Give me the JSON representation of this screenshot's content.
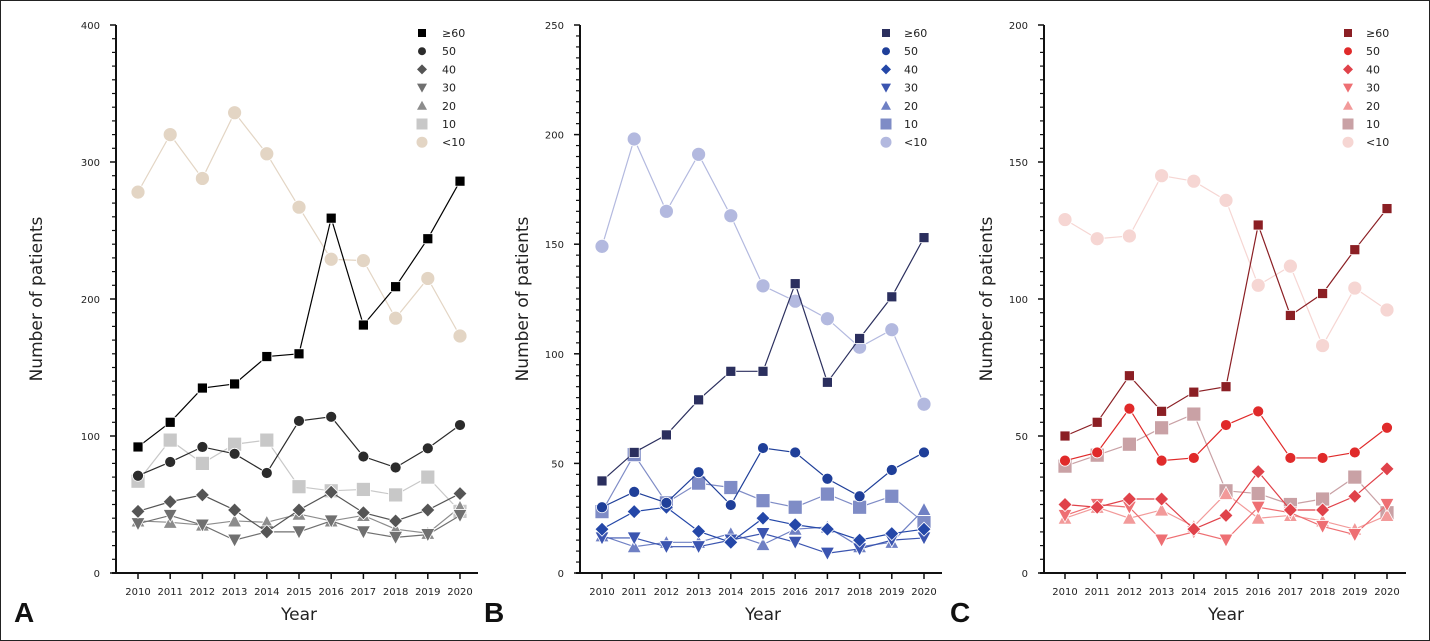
{
  "chart_data": [
    {
      "type": "line",
      "panel_label": "A",
      "title": "",
      "xlabel": "Year",
      "ylabel": "Number of patients",
      "x": [
        "2010",
        "2011",
        "2012",
        "2013",
        "2014",
        "2015",
        "2016",
        "2017",
        "2018",
        "2019",
        "2020"
      ],
      "ylim": [
        0,
        400
      ],
      "yticks": [
        0,
        100,
        200,
        300,
        400
      ],
      "grid": false,
      "legend_position": "top-right",
      "series": [
        {
          "name": "≥60",
          "marker": "square",
          "color": "#000000",
          "values": [
            92,
            110,
            135,
            138,
            158,
            160,
            259,
            181,
            209,
            244,
            286
          ]
        },
        {
          "name": "50",
          "marker": "circle",
          "color": "#2b2b2b",
          "values": [
            71,
            81,
            92,
            87,
            73,
            111,
            114,
            85,
            77,
            91,
            108
          ]
        },
        {
          "name": "40",
          "marker": "diamond",
          "color": "#555555",
          "values": [
            45,
            52,
            57,
            46,
            30,
            46,
            59,
            44,
            38,
            46,
            58
          ]
        },
        {
          "name": "30",
          "marker": "triangle-down",
          "color": "#707070",
          "values": [
            36,
            42,
            35,
            24,
            30,
            30,
            38,
            30,
            26,
            28,
            42
          ]
        },
        {
          "name": "20",
          "marker": "triangle-up",
          "color": "#8c8c8c",
          "values": [
            38,
            37,
            35,
            38,
            37,
            43,
            38,
            42,
            32,
            29,
            48
          ]
        },
        {
          "name": "10",
          "marker": "square-large",
          "color": "#c8c8c8",
          "values": [
            67,
            97,
            80,
            94,
            97,
            63,
            60,
            61,
            57,
            70,
            45
          ]
        },
        {
          "name": "<10",
          "marker": "circle-large",
          "color": "#e3d5c4",
          "values": [
            278,
            320,
            288,
            336,
            306,
            267,
            229,
            228,
            186,
            215,
            173
          ]
        }
      ]
    },
    {
      "type": "line",
      "panel_label": "B",
      "title": "",
      "xlabel": "Year",
      "ylabel": "Number of patients",
      "x": [
        "2010",
        "2011",
        "2012",
        "2013",
        "2014",
        "2015",
        "2016",
        "2017",
        "2018",
        "2019",
        "2020"
      ],
      "ylim": [
        0,
        250
      ],
      "yticks": [
        0,
        50,
        100,
        150,
        200,
        250
      ],
      "grid": false,
      "legend_position": "top-right",
      "series": [
        {
          "name": "≥60",
          "marker": "square",
          "color": "#2b2f5e",
          "values": [
            42,
            55,
            63,
            79,
            92,
            92,
            132,
            87,
            107,
            126,
            153
          ]
        },
        {
          "name": "50",
          "marker": "circle",
          "color": "#1f3f99",
          "values": [
            30,
            37,
            32,
            46,
            31,
            57,
            55,
            43,
            35,
            47,
            55
          ]
        },
        {
          "name": "40",
          "marker": "diamond",
          "color": "#2447a8",
          "values": [
            20,
            28,
            30,
            19,
            14,
            25,
            22,
            20,
            15,
            18,
            20
          ]
        },
        {
          "name": "30",
          "marker": "triangle-down",
          "color": "#3b55b0",
          "values": [
            16,
            16,
            12,
            12,
            15,
            18,
            14,
            9,
            11,
            15,
            16
          ]
        },
        {
          "name": "20",
          "marker": "triangle-up",
          "color": "#6f80c4",
          "values": [
            17,
            12,
            14,
            14,
            18,
            13,
            20,
            21,
            12,
            14,
            29
          ]
        },
        {
          "name": "10",
          "marker": "square-large",
          "color": "#7f8cc6",
          "values": [
            28,
            54,
            32,
            41,
            39,
            33,
            30,
            36,
            30,
            35,
            23
          ]
        },
        {
          "name": "<10",
          "marker": "circle-large",
          "color": "#b3b9df",
          "values": [
            149,
            198,
            165,
            191,
            163,
            131,
            124,
            116,
            103,
            111,
            77
          ]
        }
      ]
    },
    {
      "type": "line",
      "panel_label": "C",
      "title": "",
      "xlabel": "Year",
      "ylabel": "Number of patients",
      "x": [
        "2010",
        "2011",
        "2012",
        "2013",
        "2014",
        "2015",
        "2016",
        "2017",
        "2018",
        "2019",
        "2020"
      ],
      "ylim": [
        0,
        200
      ],
      "yticks": [
        0,
        50,
        100,
        150,
        200
      ],
      "grid": false,
      "legend_position": "top-right",
      "series": [
        {
          "name": "≥60",
          "marker": "square",
          "color": "#8b1f24",
          "values": [
            50,
            55,
            72,
            59,
            66,
            68,
            127,
            94,
            102,
            118,
            133
          ]
        },
        {
          "name": "50",
          "marker": "circle",
          "color": "#e02a2a",
          "values": [
            41,
            44,
            60,
            41,
            42,
            54,
            59,
            42,
            42,
            44,
            53
          ]
        },
        {
          "name": "40",
          "marker": "diamond",
          "color": "#e0424a",
          "values": [
            25,
            24,
            27,
            27,
            16,
            21,
            37,
            23,
            23,
            28,
            38
          ]
        },
        {
          "name": "30",
          "marker": "triangle-down",
          "color": "#ee6f73",
          "values": [
            21,
            25,
            24,
            12,
            15,
            12,
            24,
            22,
            17,
            14,
            25
          ]
        },
        {
          "name": "20",
          "marker": "triangle-up",
          "color": "#f29a9a",
          "values": [
            20,
            24,
            20,
            23,
            17,
            29,
            20,
            21,
            19,
            16,
            21
          ]
        },
        {
          "name": "10",
          "marker": "square-large",
          "color": "#c9a1a5",
          "values": [
            39,
            43,
            47,
            53,
            58,
            30,
            29,
            25,
            27,
            35,
            22
          ]
        },
        {
          "name": "<10",
          "marker": "circle-large",
          "color": "#f6d6d3",
          "values": [
            129,
            122,
            123,
            145,
            143,
            136,
            105,
            112,
            83,
            104,
            96
          ]
        }
      ]
    }
  ]
}
